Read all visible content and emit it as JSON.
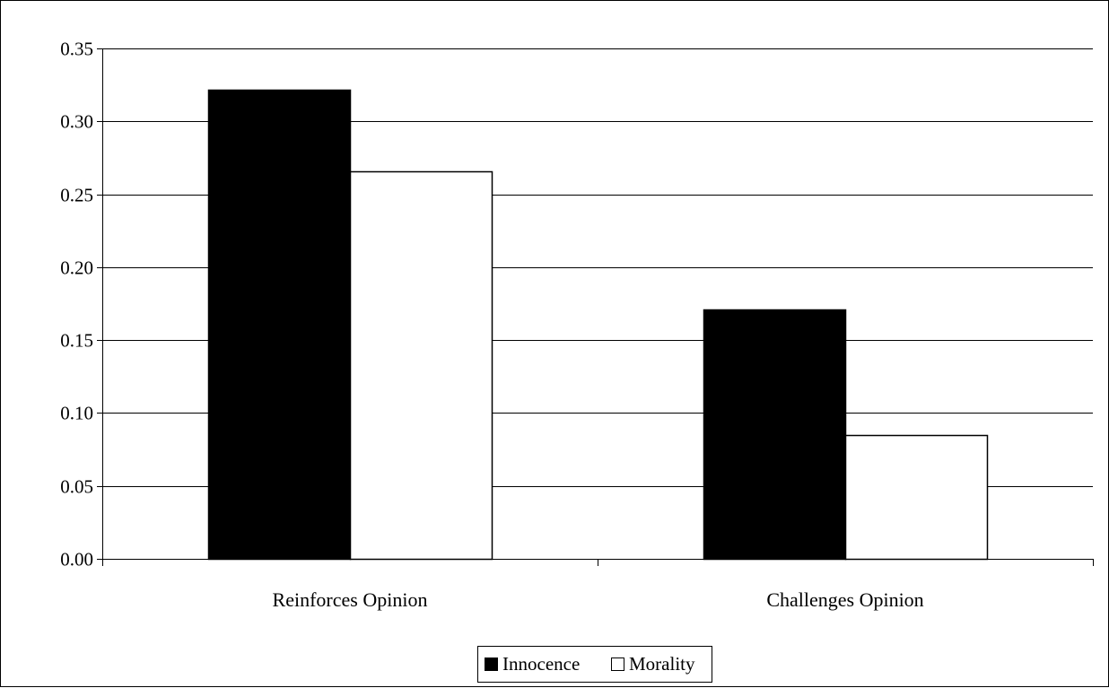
{
  "chart_data": {
    "type": "bar",
    "categories": [
      "Reinforces Opinion",
      "Challenges Opinion"
    ],
    "series": [
      {
        "name": "Innocence",
        "values": [
          0.322,
          0.171
        ],
        "color": "#000000"
      },
      {
        "name": "Morality",
        "values": [
          0.266,
          0.085
        ],
        "color": "#ffffff"
      }
    ],
    "ylim": [
      0,
      0.35
    ],
    "yticks": [
      "0.00",
      "0.05",
      "0.10",
      "0.15",
      "0.20",
      "0.25",
      "0.30",
      "0.35"
    ],
    "grid": true,
    "legend_position": "bottom"
  }
}
